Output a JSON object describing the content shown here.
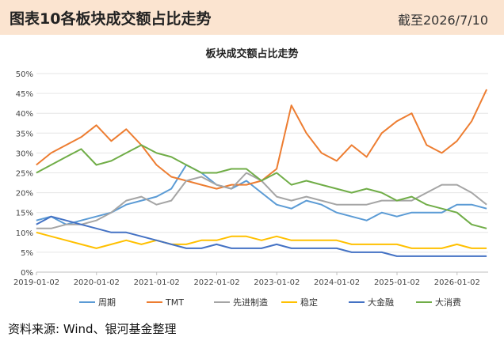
{
  "header": {
    "figure_label": "图表10",
    "title": "各板块成交额占比走势",
    "date_note": "截至2026/7/10"
  },
  "source": "资料来源: Wind、银河基金整理",
  "chart_data": {
    "type": "line",
    "title": "板块成交额占比走势",
    "xlabel": "",
    "ylabel": "",
    "x_ticks": [
      "2019-01-02",
      "2020-01-02",
      "2021-01-02",
      "2022-01-02",
      "2023-01-02",
      "2024-01-02",
      "2025-01-02",
      "2026-01-02"
    ],
    "x_range": [
      "2019-01-02",
      "2026-07-10"
    ],
    "y_ticks": [
      "0%",
      "5%",
      "10%",
      "15%",
      "20%",
      "25%",
      "30%",
      "35%",
      "40%",
      "45%",
      "50%"
    ],
    "ylim": [
      0,
      50
    ],
    "grid": "horizontal",
    "legend_position": "bottom",
    "x": [
      "2019-01",
      "2019-04",
      "2019-07",
      "2019-10",
      "2020-01",
      "2020-04",
      "2020-07",
      "2020-10",
      "2021-01",
      "2021-04",
      "2021-07",
      "2021-10",
      "2022-01",
      "2022-04",
      "2022-07",
      "2022-10",
      "2023-01",
      "2023-04",
      "2023-07",
      "2023-10",
      "2024-01",
      "2024-04",
      "2024-07",
      "2024-10",
      "2025-01",
      "2025-04",
      "2025-07",
      "2025-10",
      "2026-01",
      "2026-04",
      "2026-07"
    ],
    "series": [
      {
        "name": "周期",
        "color": "#5b9bd5",
        "values": [
          13,
          14,
          12,
          13,
          14,
          15,
          17,
          18,
          19,
          21,
          27,
          25,
          22,
          21,
          23,
          20,
          17,
          16,
          18,
          17,
          15,
          14,
          13,
          15,
          14,
          15,
          15,
          15,
          17,
          17,
          16
        ]
      },
      {
        "name": "TMT",
        "color": "#ed7d31",
        "values": [
          27,
          30,
          32,
          34,
          37,
          33,
          36,
          32,
          27,
          24,
          23,
          22,
          21,
          22,
          22,
          23,
          26,
          42,
          35,
          30,
          28,
          32,
          29,
          35,
          38,
          40,
          32,
          30,
          33,
          38,
          46
        ]
      },
      {
        "name": "先进制造",
        "color": "#a5a5a5",
        "values": [
          11,
          11,
          12,
          12,
          13,
          15,
          18,
          19,
          17,
          18,
          23,
          24,
          22,
          21,
          25,
          23,
          19,
          18,
          19,
          18,
          17,
          17,
          17,
          18,
          18,
          18,
          20,
          22,
          22,
          20,
          17
        ]
      },
      {
        "name": "稳定",
        "color": "#ffc000",
        "values": [
          10,
          9,
          8,
          7,
          6,
          7,
          8,
          7,
          8,
          7,
          7,
          8,
          8,
          9,
          9,
          8,
          9,
          8,
          8,
          8,
          8,
          7,
          7,
          7,
          7,
          6,
          6,
          6,
          7,
          6,
          6
        ]
      },
      {
        "name": "大金融",
        "color": "#4472c4",
        "values": [
          12,
          14,
          13,
          12,
          11,
          10,
          10,
          9,
          8,
          7,
          6,
          6,
          7,
          6,
          6,
          6,
          7,
          6,
          6,
          6,
          6,
          5,
          5,
          5,
          4,
          4,
          4,
          4,
          4,
          4,
          4
        ]
      },
      {
        "name": "大消费",
        "color": "#70ad47",
        "values": [
          25,
          27,
          29,
          31,
          27,
          28,
          30,
          32,
          30,
          29,
          27,
          25,
          25,
          26,
          26,
          23,
          25,
          22,
          23,
          22,
          21,
          20,
          21,
          20,
          18,
          19,
          17,
          16,
          15,
          12,
          11
        ]
      }
    ]
  }
}
